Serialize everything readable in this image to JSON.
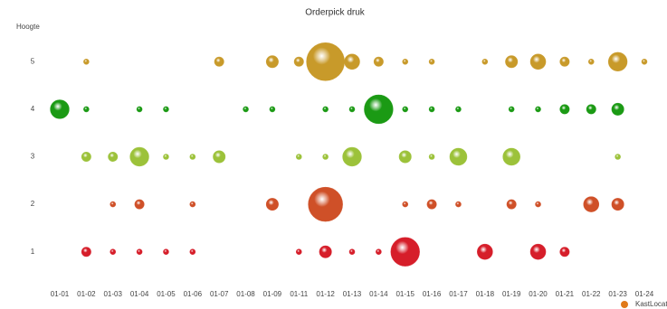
{
  "chart_data": {
    "type": "bubble",
    "title": "Orderpick druk",
    "y_label": "Hoogte",
    "legend_label": "KastLocat",
    "categories": [
      "01-01",
      "01-02",
      "01-03",
      "01-04",
      "01-05",
      "01-06",
      "01-07",
      "01-08",
      "01-09",
      "01-11",
      "01-12",
      "01-13",
      "01-14",
      "01-15",
      "01-16",
      "01-17",
      "01-18",
      "01-19",
      "01-20",
      "01-21",
      "01-22",
      "01-23",
      "01-24"
    ],
    "ylim": [
      0.5,
      5.5
    ],
    "yticks": [
      1,
      2,
      3,
      4,
      5
    ],
    "grid": false,
    "series": [
      {
        "y": 5,
        "color": "#c89a2a",
        "sizes": [
          null,
          1,
          null,
          null,
          null,
          null,
          3,
          null,
          5,
          3,
          49,
          8,
          3,
          1,
          1,
          null,
          1,
          5,
          8,
          3,
          1,
          12,
          1
        ]
      },
      {
        "y": 4,
        "color": "#1b9a14",
        "sizes": [
          12,
          1,
          null,
          1,
          1,
          null,
          null,
          1,
          1,
          null,
          1,
          1,
          28,
          1,
          1,
          1,
          null,
          1,
          1,
          3,
          3,
          5,
          null
        ]
      },
      {
        "y": 3,
        "color": "#9cc23a",
        "sizes": [
          null,
          3,
          3,
          12,
          1,
          1,
          5,
          null,
          null,
          1,
          1,
          12,
          null,
          5,
          1,
          10,
          null,
          10,
          null,
          null,
          null,
          1,
          null
        ]
      },
      {
        "y": 2,
        "color": "#cf5028",
        "sizes": [
          null,
          null,
          1,
          3,
          null,
          1,
          null,
          null,
          5,
          null,
          40,
          null,
          null,
          1,
          3,
          1,
          null,
          3,
          1,
          null,
          8,
          5,
          null
        ]
      },
      {
        "y": 1,
        "color": "#d61e2a",
        "sizes": [
          null,
          3,
          1,
          1,
          1,
          1,
          null,
          null,
          null,
          1,
          5,
          1,
          1,
          28,
          null,
          null,
          8,
          null,
          8,
          3,
          null,
          null,
          null
        ]
      }
    ]
  }
}
